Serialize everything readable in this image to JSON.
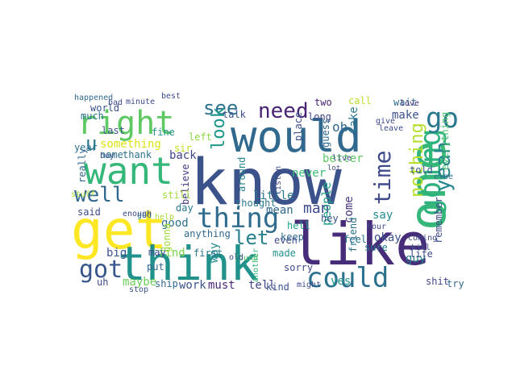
{
  "words": [
    {
      "text": "know",
      "color": "#3b528b"
    },
    {
      "text": "like",
      "color": "#472c7a"
    },
    {
      "text": "get",
      "color": "#fde725"
    },
    {
      "text": "think",
      "color": "#21918c"
    },
    {
      "text": "one",
      "color": "#35b779"
    },
    {
      "text": "would",
      "color": "#31688e"
    },
    {
      "text": "want",
      "color": "#35b779"
    },
    {
      "text": "right",
      "color": "#5ec962"
    },
    {
      "text": "going",
      "color": "#2db27d"
    },
    {
      "text": "go",
      "color": "#2a788e"
    },
    {
      "text": "could",
      "color": "#2c728e"
    },
    {
      "text": "thing",
      "color": "#2f6c8e"
    },
    {
      "text": "got",
      "color": "#39568c"
    },
    {
      "text": "time",
      "color": "#3e4a89"
    },
    {
      "text": "yeah",
      "color": "#25848e"
    },
    {
      "text": "well",
      "color": "#31688e"
    },
    {
      "text": "need",
      "color": "#482374"
    },
    {
      "text": "see",
      "color": "#2c728e"
    },
    {
      "text": "look",
      "color": "#1f988b"
    },
    {
      "text": "let",
      "color": "#27808e"
    },
    {
      "text": "u",
      "color": "#2a788e"
    },
    {
      "text": "nothing",
      "color": "#b5de2b"
    },
    {
      "text": "man",
      "color": "#3e4a89"
    },
    {
      "text": "people",
      "color": "#1fa188"
    },
    {
      "text": "mean",
      "color": "#31688e"
    },
    {
      "text": "something",
      "color": "#dde318"
    },
    {
      "text": "good",
      "color": "#2c728e"
    },
    {
      "text": "back",
      "color": "#404688"
    },
    {
      "text": "little",
      "color": "#2a788e"
    },
    {
      "text": "really",
      "color": "#31688e"
    },
    {
      "text": "find",
      "color": "#7ad151"
    },
    {
      "text": "oh",
      "color": "#31688e"
    },
    {
      "text": "say",
      "color": "#23898e"
    },
    {
      "text": "better",
      "color": "#5ec962"
    },
    {
      "text": "never",
      "color": "#3dbc74"
    },
    {
      "text": "come",
      "color": "#46337e"
    },
    {
      "text": "okay",
      "color": "#3b528b"
    },
    {
      "text": "make",
      "color": "#3b528b"
    },
    {
      "text": "take",
      "color": "#2a788e"
    },
    {
      "text": "guy",
      "color": "#277f8e"
    },
    {
      "text": "remember",
      "color": "#3e4a89"
    },
    {
      "text": "everything",
      "color": "#4ac16d"
    },
    {
      "text": "told",
      "color": "#39568c"
    },
    {
      "text": "tell",
      "color": "#404688"
    },
    {
      "text": "work",
      "color": "#3b528b"
    },
    {
      "text": "must",
      "color": "#482878"
    },
    {
      "text": "sure",
      "color": "#2a788e"
    },
    {
      "text": "maybe",
      "color": "#6ece58"
    },
    {
      "text": "believe",
      "color": "#443a83"
    },
    {
      "text": "kind",
      "color": "#3b528b"
    },
    {
      "text": "gonna",
      "color": "#9fda3a"
    },
    {
      "text": "put",
      "color": "#31688e"
    },
    {
      "text": "yes",
      "color": "#21918c"
    },
    {
      "text": "two",
      "color": "#482475"
    },
    {
      "text": "call",
      "color": "#b8de29"
    },
    {
      "text": "long",
      "color": "#414487"
    },
    {
      "text": "last",
      "color": "#3b528b"
    },
    {
      "text": "wait",
      "color": "#31688e"
    },
    {
      "text": "big",
      "color": "#3b528b"
    },
    {
      "text": "even",
      "color": "#3e4a89"
    },
    {
      "text": "day",
      "color": "#2a788e"
    },
    {
      "text": "way",
      "color": "#23898e"
    },
    {
      "text": "still",
      "color": "#a0da39"
    },
    {
      "text": "sorry",
      "color": "#3e4a89"
    },
    {
      "text": "hell",
      "color": "#1fa188"
    },
    {
      "text": "keep",
      "color": "#31688e"
    },
    {
      "text": "anything",
      "color": "#31688e"
    },
    {
      "text": "first",
      "color": "#2a788e"
    },
    {
      "text": "made",
      "color": "#21918c"
    },
    {
      "text": "name",
      "color": "#2c728e"
    },
    {
      "text": "around",
      "color": "#25848e"
    },
    {
      "text": "thought",
      "color": "#2a788e"
    },
    {
      "text": "fine",
      "color": "#21918c"
    },
    {
      "text": "talk",
      "color": "#3b528b"
    },
    {
      "text": "try",
      "color": "#31688e"
    },
    {
      "text": "life",
      "color": "#3e4a89"
    },
    {
      "text": "feel",
      "color": "#2c728e"
    },
    {
      "text": "friend",
      "color": "#2c728e"
    },
    {
      "text": "year",
      "color": "#2c728e"
    },
    {
      "text": "thank",
      "color": "#2c728e"
    },
    {
      "text": "left",
      "color": "#8fd744"
    },
    {
      "text": "sir",
      "color": "#bddf26"
    },
    {
      "text": "hey",
      "color": "#3b528b"
    },
    {
      "text": "said",
      "color": "#3e4a89"
    },
    {
      "text": "much",
      "color": "#2c728e"
    },
    {
      "text": "world",
      "color": "#3b528b"
    },
    {
      "text": "place",
      "color": "#3b528b"
    },
    {
      "text": "guess",
      "color": "#31688e"
    },
    {
      "text": "love",
      "color": "#46337e"
    },
    {
      "text": "ship",
      "color": "#31688e"
    },
    {
      "text": "stop",
      "color": "#3b528b"
    },
    {
      "text": "may",
      "color": "#3e4a89"
    },
    {
      "text": "shit",
      "color": "#404688"
    },
    {
      "text": "uh",
      "color": "#3e4a89"
    },
    {
      "text": "listen",
      "color": "#3e4a89"
    },
    {
      "text": "else",
      "color": "#2c728e"
    },
    {
      "text": "happened",
      "color": "#31688e"
    },
    {
      "text": "minute",
      "color": "#3e4a89"
    },
    {
      "text": "best",
      "color": "#3e4a89"
    },
    {
      "text": "bad",
      "color": "#3e4a89"
    },
    {
      "text": "boy",
      "color": "#3b528b"
    },
    {
      "text": "lot",
      "color": "#3e4a89"
    },
    {
      "text": "leave",
      "color": "#3e4a89"
    },
    {
      "text": "give",
      "color": "#3e4a89"
    },
    {
      "text": "live",
      "color": "#3e4a89"
    },
    {
      "text": "god",
      "color": "#2a788e"
    },
    {
      "text": "hour",
      "color": "#3e4a89"
    },
    {
      "text": "coming",
      "color": "#3e4a89"
    },
    {
      "text": "kill",
      "color": "#3b528b"
    },
    {
      "text": "stuff",
      "color": "#a8db34"
    },
    {
      "text": "another",
      "color": "#35b779"
    },
    {
      "text": "help",
      "color": "#a8db34"
    },
    {
      "text": "might",
      "color": "#3e4a89"
    },
    {
      "text": "found",
      "color": "#4ac16d"
    },
    {
      "text": "enough",
      "color": "#3e4a89"
    },
    {
      "text": "old",
      "color": "#3e4a89"
    }
  ]
}
